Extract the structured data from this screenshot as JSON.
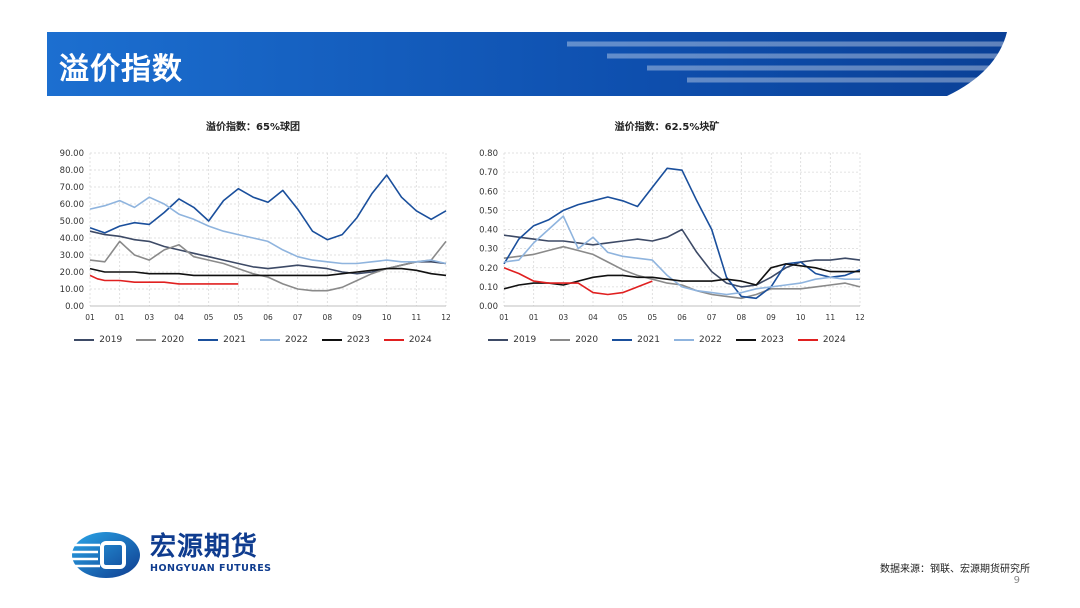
{
  "header": {
    "title": "溢价指数"
  },
  "colors": {
    "2019": "#3d4a66",
    "2020": "#8a8a8a",
    "2021": "#1a4f9c",
    "2022": "#8fb4de",
    "2023": "#111111",
    "2024": "#e02020"
  },
  "chart_data": [
    {
      "type": "line",
      "title": "溢价指数：65%球团",
      "x_ticks": [
        "01",
        "01",
        "03",
        "04",
        "05",
        "05",
        "06",
        "07",
        "08",
        "09",
        "10",
        "11",
        "12"
      ],
      "ylim": [
        0,
        90
      ],
      "y_ticks": [
        "0.00",
        "10.00",
        "20.00",
        "30.00",
        "40.00",
        "50.00",
        "60.00",
        "70.00",
        "80.00",
        "90.00"
      ],
      "grid": true,
      "legend": "bottom",
      "series": [
        {
          "name": "2019",
          "x": [
            0,
            0.5,
            1,
            1.5,
            2,
            2.5,
            3,
            3.5,
            4,
            4.5,
            5,
            5.5,
            6,
            6.5,
            7,
            7.5,
            8,
            8.5,
            9,
            9.5,
            10,
            10.5,
            11,
            11.5,
            12
          ],
          "y": [
            44,
            42,
            41,
            39,
            38,
            35,
            33,
            31,
            29,
            27,
            25,
            23,
            22,
            23,
            24,
            23,
            22,
            20,
            19,
            20,
            22,
            24,
            26,
            26,
            25
          ]
        },
        {
          "name": "2020",
          "x": [
            0,
            0.5,
            1,
            1.5,
            2,
            2.5,
            3,
            3.5,
            4,
            4.5,
            5,
            5.5,
            6,
            6.5,
            7,
            7.5,
            8,
            8.5,
            9,
            9.5,
            10,
            10.5,
            11,
            11.5,
            12
          ],
          "y": [
            27,
            26,
            38,
            30,
            27,
            33,
            36,
            29,
            27,
            25,
            22,
            19,
            17,
            13,
            10,
            9,
            9,
            11,
            15,
            19,
            22,
            24,
            26,
            27,
            38
          ]
        },
        {
          "name": "2021",
          "x": [
            0,
            0.5,
            1,
            1.5,
            2,
            2.5,
            3,
            3.5,
            4,
            4.5,
            5,
            5.5,
            6,
            6.5,
            7,
            7.5,
            8,
            8.5,
            9,
            9.5,
            10,
            10.5,
            11,
            11.5,
            12
          ],
          "y": [
            46,
            43,
            47,
            49,
            48,
            55,
            63,
            58,
            50,
            62,
            69,
            64,
            61,
            68,
            57,
            44,
            39,
            42,
            52,
            66,
            77,
            64,
            56,
            51,
            56
          ]
        },
        {
          "name": "2022",
          "x": [
            0,
            0.5,
            1,
            1.5,
            2,
            2.5,
            3,
            3.5,
            4,
            4.5,
            5,
            5.5,
            6,
            6.5,
            7,
            7.5,
            8,
            8.5,
            9,
            9.5,
            10,
            10.5,
            11,
            11.5,
            12
          ],
          "y": [
            57,
            59,
            62,
            58,
            64,
            60,
            54,
            51,
            47,
            44,
            42,
            40,
            38,
            33,
            29,
            27,
            26,
            25,
            25,
            26,
            27,
            26,
            26,
            27,
            25
          ]
        },
        {
          "name": "2023",
          "x": [
            0,
            0.5,
            1,
            1.5,
            2,
            2.5,
            3,
            3.5,
            4,
            4.5,
            5,
            5.5,
            6,
            6.5,
            7,
            7.5,
            8,
            8.5,
            9,
            9.5,
            10,
            10.5,
            11,
            11.5,
            12
          ],
          "y": [
            22,
            20,
            20,
            20,
            19,
            19,
            19,
            18,
            18,
            18,
            18,
            18,
            18,
            18,
            18,
            18,
            18,
            19,
            20,
            21,
            22,
            22,
            21,
            19,
            18
          ]
        },
        {
          "name": "2024",
          "x": [
            0,
            0.25,
            0.5,
            1,
            1.5,
            2,
            2.5,
            3,
            3.5,
            4,
            4.5,
            5
          ],
          "y": [
            18,
            16,
            15,
            15,
            14,
            14,
            14,
            13,
            13,
            13,
            13,
            13
          ]
        }
      ]
    },
    {
      "type": "line",
      "title": "溢价指数：62.5%块矿",
      "x_ticks": [
        "01",
        "01",
        "03",
        "04",
        "05",
        "05",
        "06",
        "07",
        "08",
        "09",
        "10",
        "11",
        "12"
      ],
      "ylim": [
        0,
        0.8
      ],
      "y_ticks": [
        "0.00",
        "0.10",
        "0.20",
        "0.30",
        "0.40",
        "0.50",
        "0.60",
        "0.70",
        "0.80"
      ],
      "grid": true,
      "legend": "bottom",
      "series": [
        {
          "name": "2019",
          "x": [
            0,
            0.5,
            1,
            1.5,
            2,
            2.5,
            3,
            3.5,
            4,
            4.5,
            5,
            5.5,
            6,
            6.5,
            7,
            7.5,
            8,
            8.5,
            9,
            9.5,
            10,
            10.5,
            11,
            11.5,
            12
          ],
          "y": [
            0.37,
            0.36,
            0.35,
            0.34,
            0.34,
            0.33,
            0.32,
            0.33,
            0.34,
            0.35,
            0.34,
            0.36,
            0.4,
            0.28,
            0.18,
            0.12,
            0.1,
            0.11,
            0.15,
            0.2,
            0.23,
            0.24,
            0.24,
            0.25,
            0.24
          ]
        },
        {
          "name": "2020",
          "x": [
            0,
            0.5,
            1,
            1.5,
            2,
            2.5,
            3,
            3.5,
            4,
            4.5,
            5,
            5.5,
            6,
            6.5,
            7,
            7.5,
            8,
            8.5,
            9,
            9.5,
            10,
            10.5,
            11,
            11.5,
            12
          ],
          "y": [
            0.25,
            0.26,
            0.27,
            0.29,
            0.31,
            0.29,
            0.27,
            0.23,
            0.19,
            0.16,
            0.14,
            0.12,
            0.11,
            0.08,
            0.06,
            0.05,
            0.04,
            0.06,
            0.09,
            0.09,
            0.09,
            0.1,
            0.11,
            0.12,
            0.1
          ]
        },
        {
          "name": "2021",
          "x": [
            0,
            0.5,
            1,
            1.5,
            2,
            2.5,
            3,
            3.5,
            4,
            4.5,
            5,
            5.5,
            6,
            6.5,
            7,
            7.5,
            8,
            8.5,
            9,
            9.5,
            10,
            10.5,
            11,
            11.5,
            12
          ],
          "y": [
            0.22,
            0.35,
            0.42,
            0.45,
            0.5,
            0.53,
            0.55,
            0.57,
            0.55,
            0.52,
            0.62,
            0.72,
            0.71,
            0.55,
            0.4,
            0.15,
            0.05,
            0.04,
            0.1,
            0.22,
            0.23,
            0.17,
            0.15,
            0.16,
            0.19
          ]
        },
        {
          "name": "2022",
          "x": [
            0,
            0.5,
            1,
            1.5,
            2,
            2.5,
            3,
            3.5,
            4,
            4.5,
            5,
            5.5,
            6,
            6.5,
            7,
            7.5,
            8,
            8.5,
            9,
            9.5,
            10,
            10.5,
            11,
            11.5,
            12
          ],
          "y": [
            0.23,
            0.24,
            0.33,
            0.4,
            0.47,
            0.3,
            0.36,
            0.28,
            0.26,
            0.25,
            0.24,
            0.16,
            0.1,
            0.08,
            0.07,
            0.06,
            0.07,
            0.09,
            0.1,
            0.11,
            0.12,
            0.14,
            0.15,
            0.14,
            0.14
          ]
        },
        {
          "name": "2023",
          "x": [
            0,
            0.5,
            1,
            1.5,
            2,
            2.5,
            3,
            3.5,
            4,
            4.5,
            5,
            5.5,
            6,
            6.5,
            7,
            7.5,
            8,
            8.5,
            9,
            9.5,
            10,
            10.5,
            11,
            11.5,
            12
          ],
          "y": [
            0.09,
            0.11,
            0.12,
            0.12,
            0.11,
            0.13,
            0.15,
            0.16,
            0.16,
            0.15,
            0.15,
            0.14,
            0.13,
            0.13,
            0.13,
            0.14,
            0.13,
            0.11,
            0.2,
            0.22,
            0.21,
            0.2,
            0.18,
            0.18,
            0.18
          ]
        },
        {
          "name": "2024",
          "x": [
            0,
            0.5,
            1,
            1.5,
            2,
            2.5,
            3,
            3.5,
            4,
            4.5,
            5
          ],
          "y": [
            0.2,
            0.17,
            0.13,
            0.12,
            0.12,
            0.12,
            0.07,
            0.06,
            0.07,
            0.1,
            0.13
          ]
        }
      ]
    }
  ],
  "logo": {
    "cn": "宏源期货",
    "en": "HONGYUAN FUTURES"
  },
  "footer": {
    "source": "数据来源：钢联、宏源期货研究所",
    "page": "9"
  }
}
